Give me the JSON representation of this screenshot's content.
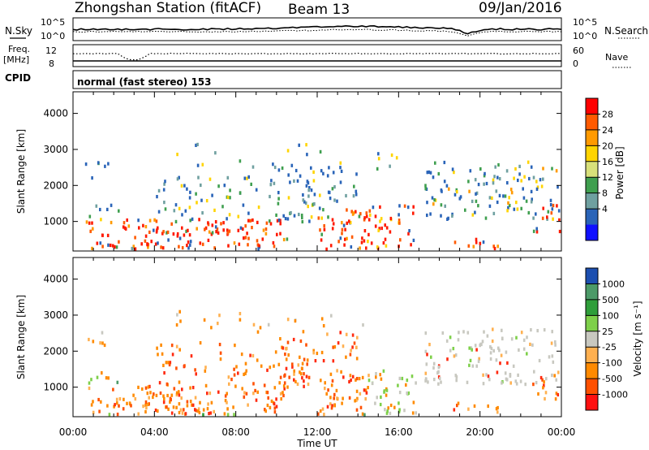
{
  "header": {
    "title": "Zhongshan Station (fitACF)",
    "beam": "Beam 13",
    "date": "09/Jan/2016"
  },
  "nsky_panel": {
    "left_label": "N.Sky",
    "right_label": "N.Search",
    "left_ticks": [
      "10^5",
      "10^0"
    ],
    "right_ticks": [
      "10^5",
      "10^0"
    ]
  },
  "freq_panel": {
    "left_label_1": "Freq.",
    "left_label_2": "[MHz]",
    "right_label": "Nave",
    "left_ticks": [
      "12",
      "8"
    ],
    "right_ticks": [
      "60",
      "0"
    ]
  },
  "cpid": {
    "label": "CPID",
    "text": "normal (fast stereo) 153"
  },
  "chart_data": [
    {
      "type": "heatmap",
      "name": "power",
      "ylabel": "Slant Range [km]",
      "yticks": [
        1000,
        2000,
        3000,
        4000
      ],
      "ylim": [
        180,
        4600
      ],
      "xlim_hours": [
        0,
        24
      ],
      "colorbar_label": "Power [dB]",
      "colorbar_ticks": [
        "28",
        "24",
        "20",
        "16",
        "12",
        "8",
        "4"
      ],
      "colorbar_colors": [
        "#ff0000",
        "#ff5a00",
        "#ff9a00",
        "#ffd400",
        "#d8e07a",
        "#3f9f4f",
        "#6fa0a0",
        "#2a64b8",
        "#1010ff"
      ]
    },
    {
      "type": "heatmap",
      "name": "velocity",
      "ylabel": "Slant Range [km]",
      "yticks": [
        1000,
        2000,
        3000,
        4000
      ],
      "ylim": [
        180,
        4600
      ],
      "xlim_hours": [
        0,
        24
      ],
      "colorbar_label": "Velocity [m s⁻¹]",
      "colorbar_ticks": [
        "1000",
        "500",
        "100",
        "25",
        "-25",
        "-100",
        "-500",
        "-1000"
      ],
      "colorbar_colors": [
        "#1c4fb0",
        "#4c9a68",
        "#2f9e3a",
        "#7ed04a",
        "#c8c8c0",
        "#ffb050",
        "#ff8a00",
        "#ff5000",
        "#ff1010"
      ]
    }
  ],
  "x_axis": {
    "ticks": [
      "00:00",
      "04:00",
      "08:00",
      "12:00",
      "16:00",
      "20:00",
      "00:00"
    ],
    "label": "Time UT"
  }
}
